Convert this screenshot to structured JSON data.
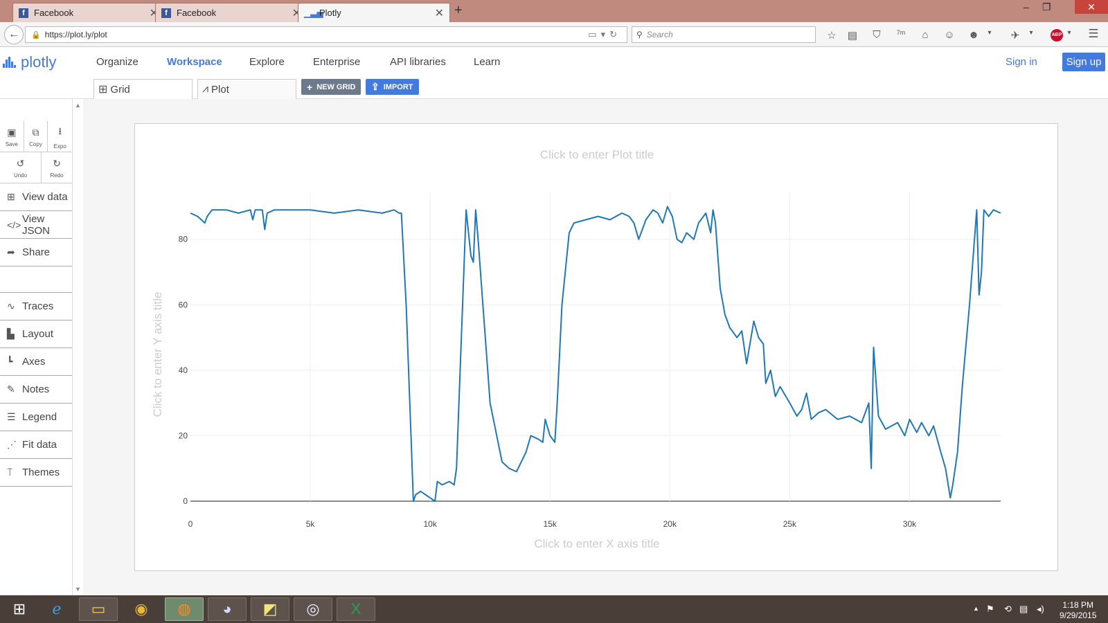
{
  "browser": {
    "tabs": [
      {
        "label": "Facebook",
        "favicon": "facebook-icon",
        "active": false
      },
      {
        "label": "Facebook",
        "favicon": "facebook-icon",
        "active": false
      },
      {
        "label": "Plotly",
        "favicon": "plotly-icon",
        "active": true
      }
    ],
    "url": "https://plot.ly/plot",
    "search_placeholder": "Search",
    "adblock_label": "ABP",
    "pocket_badge": "7m"
  },
  "header": {
    "logo_text": "plotly",
    "nav": [
      "Organize",
      "Workspace",
      "Explore",
      "Enterprise",
      "API libraries",
      "Learn"
    ],
    "active_nav": "Workspace",
    "sign_in": "Sign in",
    "sign_up": "Sign up",
    "accent": "#447adb"
  },
  "subbar": {
    "grid_tab": "Grid",
    "plot_tab": "Plot",
    "new_grid": "NEW GRID",
    "import": "IMPORT"
  },
  "sidebar": {
    "tools_row1": [
      {
        "label": "Save",
        "icon": "save-icon"
      },
      {
        "label": "Copy",
        "icon": "copy-icon"
      },
      {
        "label": "Expo",
        "icon": "export-icon"
      }
    ],
    "tools_row2": [
      {
        "label": "Undo",
        "icon": "undo-icon"
      },
      {
        "label": "Redo",
        "icon": "redo-icon"
      }
    ],
    "items_top": [
      "View data",
      "View JSON",
      "Share"
    ],
    "items_bottom": [
      "Traces",
      "Layout",
      "Axes",
      "Notes",
      "Legend",
      "Fit data",
      "Themes"
    ]
  },
  "plot": {
    "title_placeholder": "Click to enter Plot title",
    "xaxis_placeholder": "Click to enter X axis title",
    "yaxis_placeholder": "Click to enter Y axis title"
  },
  "chart_data": {
    "type": "line",
    "title": "",
    "xlabel": "",
    "ylabel": "",
    "xlim": [
      0,
      33800
    ],
    "ylim": [
      0,
      92
    ],
    "x_ticks": [
      0,
      5000,
      10000,
      15000,
      20000,
      25000,
      30000
    ],
    "x_tick_labels": [
      "0",
      "5k",
      "10k",
      "15k",
      "20k",
      "25k",
      "30k"
    ],
    "y_ticks": [
      0,
      20,
      40,
      60,
      80
    ],
    "y_tick_labels": [
      "0",
      "20",
      "40",
      "60",
      "80"
    ],
    "grid": true,
    "line_color": "#1f77b4",
    "series": [
      {
        "x": [
          0,
          300,
          600,
          700,
          900,
          1200,
          1500,
          2000,
          2500,
          2600,
          2700,
          3000,
          3100,
          3200,
          3500,
          4000,
          5000,
          6000,
          7000,
          8000,
          8500,
          8700,
          8800,
          9000,
          9200,
          9300,
          9400,
          9600,
          9800,
          10000,
          10200,
          10300,
          10500,
          10800,
          11000,
          11100,
          11200,
          11500,
          11700,
          11800,
          11900,
          12000,
          12200,
          12300,
          12500,
          13000,
          13300,
          13600,
          13800,
          14000,
          14200,
          14500,
          14700,
          14800,
          15000,
          15200,
          15300,
          15500,
          15800,
          16000,
          16500,
          17000,
          17500,
          18000,
          18300,
          18500,
          18700,
          19000,
          19300,
          19500,
          19700,
          19900,
          20100,
          20300,
          20500,
          20700,
          21000,
          21200,
          21500,
          21700,
          21800,
          21900,
          22100,
          22300,
          22500,
          22800,
          23000,
          23200,
          23500,
          23700,
          23900,
          24000,
          24200,
          24400,
          24600,
          25000,
          25300,
          25500,
          25700,
          25900,
          26200,
          26500,
          27000,
          27500,
          28000,
          28300,
          28400,
          28500,
          28700,
          29000,
          29500,
          29800,
          30000,
          30300,
          30500,
          30800,
          31000,
          31300,
          31500,
          31700,
          31800,
          32000,
          32200,
          32500,
          32800,
          32900,
          33000,
          33100,
          33300,
          33500,
          33800
        ],
        "y": [
          88,
          87,
          85,
          87,
          89,
          89,
          89,
          88,
          89,
          86,
          89,
          89,
          83,
          88,
          89,
          89,
          89,
          88,
          89,
          88,
          89,
          88,
          88,
          60,
          20,
          0,
          2,
          3,
          2,
          1,
          0,
          6,
          5,
          6,
          5,
          10,
          30,
          89,
          75,
          73,
          89,
          80,
          60,
          50,
          30,
          12,
          10,
          9,
          12,
          15,
          20,
          19,
          18,
          25,
          20,
          18,
          30,
          60,
          82,
          85,
          86,
          87,
          86,
          88,
          87,
          85,
          80,
          86,
          89,
          88,
          85,
          90,
          87,
          80,
          79,
          82,
          80,
          85,
          88,
          82,
          89,
          85,
          65,
          57,
          53,
          50,
          52,
          42,
          55,
          50,
          48,
          36,
          40,
          32,
          35,
          30,
          26,
          28,
          33,
          25,
          27,
          28,
          25,
          26,
          24,
          30,
          10,
          47,
          26,
          22,
          24,
          20,
          25,
          21,
          24,
          20,
          23,
          15,
          10,
          1,
          5,
          15,
          35,
          60,
          89,
          63,
          70,
          89,
          87,
          89,
          88
        ]
      }
    ]
  },
  "taskbar": {
    "time": "1:18 PM",
    "date": "9/29/2015"
  }
}
